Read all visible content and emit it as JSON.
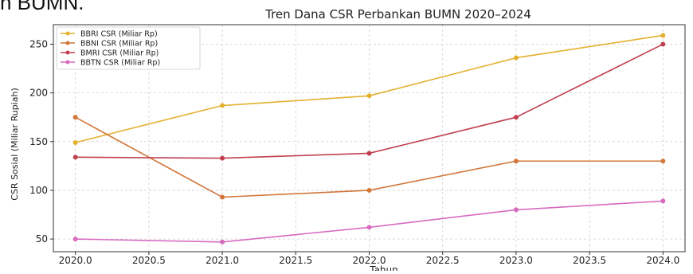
{
  "fragment_text": "n BUMN.",
  "chart_data": {
    "type": "line",
    "title": "Tren Dana CSR Perbankan BUMN 2020–2024",
    "xlabel": "Tahun",
    "ylabel": "CSR Sosial (Miliar Rupiah)",
    "x": [
      2020,
      2021,
      2022,
      2023,
      2024
    ],
    "xlim": [
      2019.85,
      2024.15
    ],
    "ylim": [
      37,
      270
    ],
    "xticks": [
      "2020.0",
      "2020.5",
      "2021.0",
      "2021.5",
      "2022.0",
      "2022.5",
      "2023.0",
      "2023.5",
      "2024.0"
    ],
    "yticks": [
      "50",
      "100",
      "150",
      "200",
      "250"
    ],
    "grid": true,
    "legend_position": "top-left",
    "series": [
      {
        "name": "BBRI CSR (Miliar Rp)",
        "color": "#e3b12f",
        "values": [
          149,
          187,
          197,
          236,
          259
        ]
      },
      {
        "name": "BBNI CSR (Miliar Rp)",
        "color": "#d2763a",
        "values": [
          175,
          93,
          100,
          130,
          130
        ]
      },
      {
        "name": "BMRI CSR (Miliar Rp)",
        "color": "#c0404f",
        "values": [
          134,
          133,
          138,
          175,
          250
        ]
      },
      {
        "name": "BBTN CSR (Miliar Rp)",
        "color": "#d86ac0",
        "values": [
          50,
          47,
          62,
          80,
          89
        ]
      }
    ]
  }
}
